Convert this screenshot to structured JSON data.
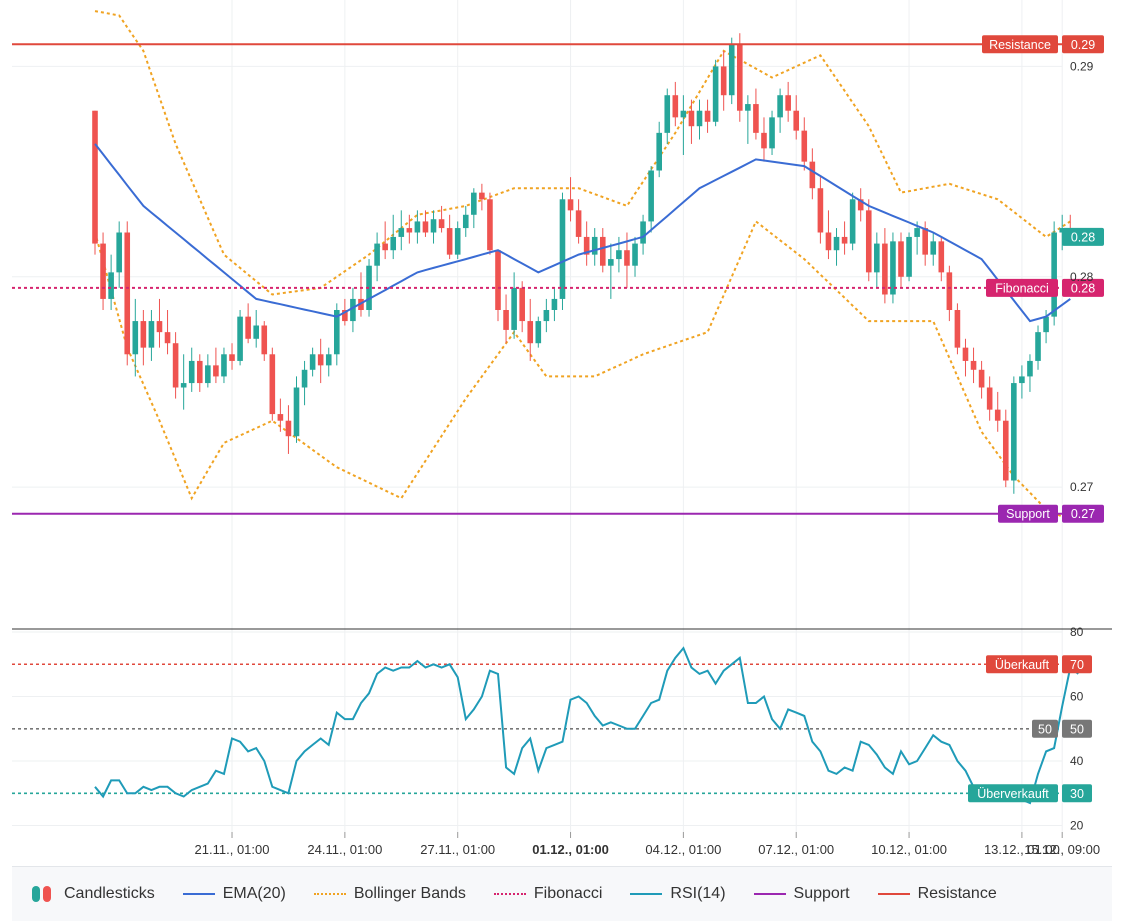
{
  "chart_data": {
    "type": "candlestick",
    "x_tick_labels": [
      "21.11., 01:00",
      "24.11., 01:00",
      "27.11., 01:00",
      "01.12., 01:00",
      "04.12., 01:00",
      "07.12., 01:00",
      "10.12., 01:00",
      "13.12., 01:00",
      "15.12., 09:00"
    ],
    "price_tick_labels": [
      "0.29",
      "0.28",
      "0.27"
    ],
    "rsi_tick_labels": [
      "80",
      "60",
      "40",
      "20"
    ],
    "price_ylim": [
      0.2655,
      0.2935
    ],
    "rsi_ylim": [
      18,
      80
    ],
    "reference_lines": {
      "resistance": {
        "label": "Resistance",
        "value_label": "0.29",
        "value": 0.2915,
        "color": "#e0483c"
      },
      "fibonacci": {
        "label": "Fibonacci",
        "value_label": "0.28",
        "value": 0.2805,
        "color": "#d6246e"
      },
      "support": {
        "label": "Support",
        "value_label": "0.27",
        "value": 0.2703,
        "color": "#9b27b0"
      },
      "last_price": {
        "value_label": "0.28",
        "value": 0.2828,
        "color": "#26a69a"
      }
    },
    "rsi_levels": {
      "overbought": {
        "label": "Überkauft",
        "value_label": "70",
        "value": 70,
        "color": "#e0483c"
      },
      "middle": {
        "label": "50",
        "value_label": "50",
        "value": 50,
        "color": "#777777"
      },
      "oversold": {
        "label": "Überverkauft",
        "value_label": "30",
        "value": 30,
        "color": "#26a69a"
      }
    },
    "candles": [
      [
        0.2885,
        0.2885,
        0.282,
        0.2825
      ],
      [
        0.2825,
        0.283,
        0.2795,
        0.28
      ],
      [
        0.28,
        0.282,
        0.2795,
        0.2812
      ],
      [
        0.2812,
        0.2835,
        0.2805,
        0.283
      ],
      [
        0.283,
        0.2835,
        0.277,
        0.2775
      ],
      [
        0.2775,
        0.28,
        0.2765,
        0.279
      ],
      [
        0.279,
        0.2795,
        0.277,
        0.2778
      ],
      [
        0.2778,
        0.2795,
        0.2772,
        0.279
      ],
      [
        0.279,
        0.28,
        0.2778,
        0.2785
      ],
      [
        0.2785,
        0.2795,
        0.2775,
        0.278
      ],
      [
        0.278,
        0.2785,
        0.2755,
        0.276
      ],
      [
        0.276,
        0.2775,
        0.275,
        0.2762
      ],
      [
        0.2762,
        0.2778,
        0.2758,
        0.2772
      ],
      [
        0.2772,
        0.2775,
        0.2758,
        0.2762
      ],
      [
        0.2762,
        0.2775,
        0.276,
        0.277
      ],
      [
        0.277,
        0.2778,
        0.2762,
        0.2765
      ],
      [
        0.2765,
        0.2778,
        0.2762,
        0.2775
      ],
      [
        0.2775,
        0.278,
        0.2768,
        0.2772
      ],
      [
        0.2772,
        0.2795,
        0.277,
        0.2792
      ],
      [
        0.2792,
        0.2798,
        0.278,
        0.2782
      ],
      [
        0.2782,
        0.2795,
        0.2778,
        0.2788
      ],
      [
        0.2788,
        0.279,
        0.2772,
        0.2775
      ],
      [
        0.2775,
        0.2778,
        0.2745,
        0.2748
      ],
      [
        0.2748,
        0.2755,
        0.274,
        0.2745
      ],
      [
        0.2745,
        0.2752,
        0.273,
        0.2738
      ],
      [
        0.2738,
        0.2765,
        0.2735,
        0.276
      ],
      [
        0.276,
        0.2772,
        0.2752,
        0.2768
      ],
      [
        0.2768,
        0.2778,
        0.2765,
        0.2775
      ],
      [
        0.2775,
        0.2782,
        0.2762,
        0.277
      ],
      [
        0.277,
        0.2778,
        0.2765,
        0.2775
      ],
      [
        0.2775,
        0.2798,
        0.277,
        0.2795
      ],
      [
        0.2795,
        0.28,
        0.2788,
        0.279
      ],
      [
        0.279,
        0.2805,
        0.2785,
        0.28
      ],
      [
        0.28,
        0.2812,
        0.2792,
        0.2795
      ],
      [
        0.2795,
        0.2818,
        0.2792,
        0.2815
      ],
      [
        0.2815,
        0.283,
        0.2808,
        0.2825
      ],
      [
        0.2825,
        0.2835,
        0.2818,
        0.2822
      ],
      [
        0.2822,
        0.2838,
        0.2818,
        0.2828
      ],
      [
        0.2828,
        0.284,
        0.2822,
        0.2832
      ],
      [
        0.2832,
        0.2838,
        0.2825,
        0.283
      ],
      [
        0.283,
        0.284,
        0.2825,
        0.2835
      ],
      [
        0.2835,
        0.284,
        0.2828,
        0.283
      ],
      [
        0.283,
        0.284,
        0.2825,
        0.2836
      ],
      [
        0.2836,
        0.2842,
        0.283,
        0.2832
      ],
      [
        0.2832,
        0.2838,
        0.2818,
        0.282
      ],
      [
        0.282,
        0.2835,
        0.2818,
        0.2832
      ],
      [
        0.2832,
        0.2842,
        0.2828,
        0.2838
      ],
      [
        0.2838,
        0.285,
        0.2832,
        0.2848
      ],
      [
        0.2848,
        0.2852,
        0.284,
        0.2845
      ],
      [
        0.2845,
        0.2848,
        0.282,
        0.2822
      ],
      [
        0.2822,
        0.2822,
        0.279,
        0.2795
      ],
      [
        0.2795,
        0.2802,
        0.278,
        0.2786
      ],
      [
        0.2786,
        0.2812,
        0.2782,
        0.2805
      ],
      [
        0.2805,
        0.2808,
        0.2785,
        0.279
      ],
      [
        0.279,
        0.28,
        0.2772,
        0.278
      ],
      [
        0.278,
        0.2792,
        0.2778,
        0.279
      ],
      [
        0.279,
        0.28,
        0.2785,
        0.2795
      ],
      [
        0.2795,
        0.2805,
        0.279,
        0.28
      ],
      [
        0.28,
        0.2848,
        0.2795,
        0.2845
      ],
      [
        0.2845,
        0.2855,
        0.2835,
        0.284
      ],
      [
        0.284,
        0.2845,
        0.2825,
        0.2828
      ],
      [
        0.2828,
        0.2835,
        0.2815,
        0.282
      ],
      [
        0.282,
        0.2832,
        0.2815,
        0.2828
      ],
      [
        0.2828,
        0.2832,
        0.2812,
        0.2815
      ],
      [
        0.2815,
        0.2825,
        0.28,
        0.2818
      ],
      [
        0.2818,
        0.2828,
        0.2812,
        0.2822
      ],
      [
        0.2822,
        0.283,
        0.2805,
        0.2815
      ],
      [
        0.2815,
        0.2828,
        0.281,
        0.2825
      ],
      [
        0.2825,
        0.2838,
        0.282,
        0.2835
      ],
      [
        0.2835,
        0.286,
        0.283,
        0.2858
      ],
      [
        0.2858,
        0.288,
        0.2855,
        0.2875
      ],
      [
        0.2875,
        0.2895,
        0.287,
        0.2892
      ],
      [
        0.2892,
        0.2898,
        0.2878,
        0.2882
      ],
      [
        0.2882,
        0.2892,
        0.2865,
        0.2885
      ],
      [
        0.2885,
        0.289,
        0.287,
        0.2878
      ],
      [
        0.2878,
        0.289,
        0.2872,
        0.2885
      ],
      [
        0.2885,
        0.289,
        0.2875,
        0.288
      ],
      [
        0.288,
        0.2908,
        0.2878,
        0.2905
      ],
      [
        0.2905,
        0.2912,
        0.2885,
        0.2892
      ],
      [
        0.2892,
        0.2918,
        0.2888,
        0.2915
      ],
      [
        0.2915,
        0.292,
        0.288,
        0.2885
      ],
      [
        0.2885,
        0.2892,
        0.287,
        0.2888
      ],
      [
        0.2888,
        0.2895,
        0.2872,
        0.2875
      ],
      [
        0.2875,
        0.2882,
        0.2862,
        0.2868
      ],
      [
        0.2868,
        0.2885,
        0.2865,
        0.2882
      ],
      [
        0.2882,
        0.2895,
        0.2875,
        0.2892
      ],
      [
        0.2892,
        0.2898,
        0.288,
        0.2885
      ],
      [
        0.2885,
        0.2892,
        0.2872,
        0.2876
      ],
      [
        0.2876,
        0.2882,
        0.2858,
        0.2862
      ],
      [
        0.2862,
        0.2868,
        0.2845,
        0.285
      ],
      [
        0.285,
        0.2855,
        0.2825,
        0.283
      ],
      [
        0.283,
        0.284,
        0.2818,
        0.2822
      ],
      [
        0.2822,
        0.2832,
        0.2815,
        0.2828
      ],
      [
        0.2828,
        0.2835,
        0.282,
        0.2825
      ],
      [
        0.2825,
        0.2848,
        0.2822,
        0.2845
      ],
      [
        0.2845,
        0.285,
        0.2835,
        0.284
      ],
      [
        0.284,
        0.2845,
        0.2808,
        0.2812
      ],
      [
        0.2812,
        0.283,
        0.2805,
        0.2825
      ],
      [
        0.2825,
        0.2832,
        0.2798,
        0.2802
      ],
      [
        0.2802,
        0.283,
        0.2798,
        0.2826
      ],
      [
        0.2826,
        0.283,
        0.2805,
        0.281
      ],
      [
        0.281,
        0.283,
        0.2808,
        0.2828
      ],
      [
        0.2828,
        0.2835,
        0.282,
        0.2832
      ],
      [
        0.2832,
        0.2835,
        0.2815,
        0.282
      ],
      [
        0.282,
        0.283,
        0.2815,
        0.2826
      ],
      [
        0.2826,
        0.2828,
        0.2808,
        0.2812
      ],
      [
        0.2812,
        0.2815,
        0.279,
        0.2795
      ],
      [
        0.2795,
        0.2798,
        0.2775,
        0.2778
      ],
      [
        0.2778,
        0.2782,
        0.2765,
        0.2772
      ],
      [
        0.2772,
        0.2778,
        0.2762,
        0.2768
      ],
      [
        0.2768,
        0.2772,
        0.2755,
        0.276
      ],
      [
        0.276,
        0.2765,
        0.2745,
        0.275
      ],
      [
        0.275,
        0.2758,
        0.274,
        0.2745
      ],
      [
        0.2745,
        0.275,
        0.2715,
        0.2718
      ],
      [
        0.2718,
        0.2765,
        0.2712,
        0.2762
      ],
      [
        0.2762,
        0.277,
        0.2755,
        0.2765
      ],
      [
        0.2765,
        0.2775,
        0.2758,
        0.2772
      ],
      [
        0.2772,
        0.2788,
        0.2768,
        0.2785
      ],
      [
        0.2785,
        0.2795,
        0.278,
        0.2792
      ],
      [
        0.2792,
        0.2835,
        0.2788,
        0.283
      ],
      [
        0.283,
        0.2838,
        0.2822,
        0.2832
      ],
      [
        0.2832,
        0.2838,
        0.2825,
        0.2828
      ]
    ],
    "ema_20": [
      [
        0,
        0.287
      ],
      [
        6,
        0.2842
      ],
      [
        20,
        0.28
      ],
      [
        30,
        0.2792
      ],
      [
        40,
        0.2812
      ],
      [
        50,
        0.2822
      ],
      [
        55,
        0.2812
      ],
      [
        60,
        0.282
      ],
      [
        68,
        0.2828
      ],
      [
        75,
        0.285
      ],
      [
        82,
        0.2863
      ],
      [
        88,
        0.286
      ],
      [
        96,
        0.2842
      ],
      [
        104,
        0.283
      ],
      [
        110,
        0.2818
      ],
      [
        116,
        0.279
      ],
      [
        118,
        0.2792
      ],
      [
        121,
        0.28
      ]
    ],
    "bollinger_upper": [
      [
        0,
        0.293
      ],
      [
        3,
        0.2928
      ],
      [
        6,
        0.2912
      ],
      [
        10,
        0.287
      ],
      [
        16,
        0.282
      ],
      [
        22,
        0.2802
      ],
      [
        28,
        0.2805
      ],
      [
        34,
        0.282
      ],
      [
        40,
        0.2838
      ],
      [
        46,
        0.2842
      ],
      [
        52,
        0.285
      ],
      [
        60,
        0.285
      ],
      [
        66,
        0.2842
      ],
      [
        72,
        0.2875
      ],
      [
        78,
        0.2912
      ],
      [
        84,
        0.29
      ],
      [
        90,
        0.291
      ],
      [
        96,
        0.2878
      ],
      [
        100,
        0.2848
      ],
      [
        106,
        0.2852
      ],
      [
        112,
        0.2845
      ],
      [
        118,
        0.2828
      ],
      [
        121,
        0.2835
      ]
    ],
    "bollinger_lower": [
      [
        0,
        0.283
      ],
      [
        4,
        0.2778
      ],
      [
        8,
        0.2745
      ],
      [
        12,
        0.271
      ],
      [
        16,
        0.2735
      ],
      [
        22,
        0.2745
      ],
      [
        30,
        0.2724
      ],
      [
        38,
        0.271
      ],
      [
        46,
        0.2755
      ],
      [
        52,
        0.2785
      ],
      [
        56,
        0.2765
      ],
      [
        62,
        0.2765
      ],
      [
        68,
        0.2775
      ],
      [
        76,
        0.2785
      ],
      [
        82,
        0.2835
      ],
      [
        88,
        0.2818
      ],
      [
        96,
        0.279
      ],
      [
        104,
        0.279
      ],
      [
        110,
        0.274
      ],
      [
        114,
        0.272
      ],
      [
        118,
        0.2705
      ],
      [
        121,
        0.27
      ]
    ],
    "rsi_14": [
      [
        0,
        32
      ],
      [
        1,
        29
      ],
      [
        2,
        34
      ],
      [
        3,
        34
      ],
      [
        4,
        30
      ],
      [
        5,
        30
      ],
      [
        6,
        32
      ],
      [
        7,
        31
      ],
      [
        8,
        32
      ],
      [
        9,
        32
      ],
      [
        10,
        30
      ],
      [
        11,
        29
      ],
      [
        12,
        31
      ],
      [
        13,
        32
      ],
      [
        14,
        33
      ],
      [
        15,
        37
      ],
      [
        16,
        36
      ],
      [
        17,
        47
      ],
      [
        18,
        46
      ],
      [
        19,
        43
      ],
      [
        20,
        44
      ],
      [
        21,
        40
      ],
      [
        22,
        32
      ],
      [
        23,
        31
      ],
      [
        24,
        30
      ],
      [
        25,
        40
      ],
      [
        26,
        43
      ],
      [
        27,
        45
      ],
      [
        28,
        47
      ],
      [
        29,
        45
      ],
      [
        30,
        55
      ],
      [
        31,
        53
      ],
      [
        32,
        53
      ],
      [
        33,
        58
      ],
      [
        34,
        61
      ],
      [
        35,
        67
      ],
      [
        36,
        69
      ],
      [
        37,
        68
      ],
      [
        38,
        69
      ],
      [
        39,
        69
      ],
      [
        40,
        71
      ],
      [
        41,
        69
      ],
      [
        42,
        70
      ],
      [
        43,
        69
      ],
      [
        44,
        70
      ],
      [
        45,
        66
      ],
      [
        46,
        53
      ],
      [
        47,
        56
      ],
      [
        48,
        60
      ],
      [
        49,
        68
      ],
      [
        50,
        67
      ],
      [
        51,
        38
      ],
      [
        52,
        36
      ],
      [
        53,
        44
      ],
      [
        54,
        47
      ],
      [
        55,
        37
      ],
      [
        56,
        44
      ],
      [
        57,
        45
      ],
      [
        58,
        46
      ],
      [
        59,
        59
      ],
      [
        60,
        60
      ],
      [
        61,
        58
      ],
      [
        62,
        54
      ],
      [
        63,
        51
      ],
      [
        64,
        52
      ],
      [
        65,
        51
      ],
      [
        66,
        50
      ],
      [
        67,
        50
      ],
      [
        68,
        54
      ],
      [
        69,
        58
      ],
      [
        70,
        59
      ],
      [
        71,
        68
      ],
      [
        72,
        72
      ],
      [
        73,
        75
      ],
      [
        74,
        69
      ],
      [
        75,
        67
      ],
      [
        76,
        68
      ],
      [
        77,
        64
      ],
      [
        78,
        68
      ],
      [
        79,
        70
      ],
      [
        80,
        72
      ],
      [
        81,
        58
      ],
      [
        82,
        58
      ],
      [
        83,
        60
      ],
      [
        84,
        53
      ],
      [
        85,
        50
      ],
      [
        86,
        56
      ],
      [
        87,
        55
      ],
      [
        88,
        54
      ],
      [
        89,
        46
      ],
      [
        90,
        43
      ],
      [
        91,
        37
      ],
      [
        92,
        36
      ],
      [
        93,
        38
      ],
      [
        94,
        37
      ],
      [
        95,
        46
      ],
      [
        96,
        45
      ],
      [
        97,
        42
      ],
      [
        98,
        38
      ],
      [
        99,
        36
      ],
      [
        100,
        43
      ],
      [
        101,
        39
      ],
      [
        102,
        40
      ],
      [
        103,
        44
      ],
      [
        104,
        48
      ],
      [
        105,
        46
      ],
      [
        106,
        45
      ],
      [
        107,
        40
      ],
      [
        108,
        37
      ],
      [
        109,
        32
      ],
      [
        110,
        30
      ],
      [
        111,
        29
      ],
      [
        112,
        32
      ],
      [
        113,
        32
      ],
      [
        114,
        29
      ],
      [
        115,
        28
      ],
      [
        116,
        27
      ],
      [
        117,
        36
      ],
      [
        118,
        43
      ],
      [
        119,
        44
      ],
      [
        120,
        57
      ],
      [
        121,
        69
      ],
      [
        122,
        67
      ]
    ]
  },
  "legend": [
    {
      "name": "Candlesticks",
      "kind": "candles"
    },
    {
      "name": "EMA(20)",
      "kind": "line",
      "color": "#3a6cd4"
    },
    {
      "name": "Bollinger Bands",
      "kind": "dotted",
      "color": "#f0a322"
    },
    {
      "name": "Fibonacci",
      "kind": "dotted",
      "color": "#d6246e"
    },
    {
      "name": "RSI(14)",
      "kind": "line",
      "color": "#1f9bb8"
    },
    {
      "name": "Support",
      "kind": "line",
      "color": "#9b27b0"
    },
    {
      "name": "Resistance",
      "kind": "line",
      "color": "#e0483c"
    }
  ],
  "colors": {
    "up": "#26a69a",
    "down": "#ef5350",
    "grid": "#eef0f2",
    "axis_text": "#333333"
  }
}
